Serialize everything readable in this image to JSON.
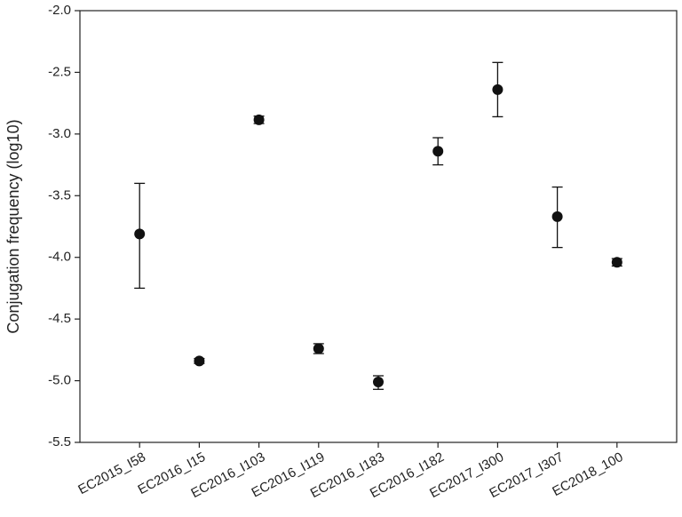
{
  "chart_data": {
    "type": "errorbar-dot",
    "y_label": "Conjugation frequency (log10)",
    "categories": [
      "EC2015_I58",
      "EC2016_I15",
      "EC2016_I103",
      "EC2016_I119",
      "EC2016_I183",
      "EC2016_I182",
      "EC2017_I300",
      "EC2017_I307",
      "EC2018_100"
    ],
    "values": [
      -3.81,
      -4.84,
      -2.885,
      -4.74,
      -5.01,
      -3.14,
      -2.64,
      -3.67,
      -4.04
    ],
    "error_minus": [
      0.44,
      0.02,
      0.03,
      0.04,
      0.06,
      0.11,
      0.22,
      0.25,
      0.03
    ],
    "error_plus": [
      0.41,
      0.02,
      0.03,
      0.04,
      0.05,
      0.11,
      0.22,
      0.24,
      0.03
    ],
    "color": "#111111",
    "ylim": [
      -5.5,
      -2.0
    ],
    "yticks": [
      {
        "value": -5.5,
        "label": "-5.5"
      },
      {
        "value": -5.0,
        "label": "-5.0"
      },
      -4.5,
      {
        "value": -4.0,
        "label": "-4.0"
      },
      -3.5,
      {
        "value": -3.0,
        "label": "-3.0"
      },
      -2.5,
      {
        "value": -2.0,
        "label": "-2.0"
      }
    ]
  }
}
